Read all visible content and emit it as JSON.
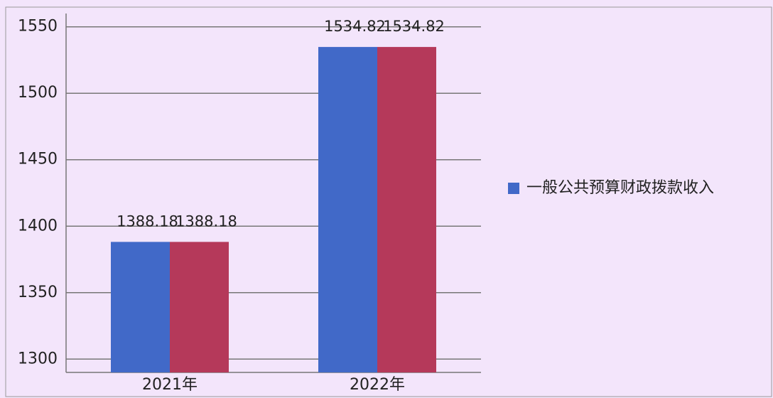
{
  "chart_data": {
    "type": "bar",
    "categories": [
      "2021年",
      "2022年"
    ],
    "series": [
      {
        "name": "一般公共预算财政拨款收入",
        "color": "#4169c8",
        "values": [
          1388.18,
          1534.82
        ]
      },
      {
        "color": "#b5395a",
        "values": [
          1388.18,
          1534.82
        ]
      }
    ],
    "ylim": [
      1290,
      1560
    ],
    "yticks": [
      1300,
      1350,
      1400,
      1450,
      1500,
      1550
    ],
    "grid": true
  }
}
